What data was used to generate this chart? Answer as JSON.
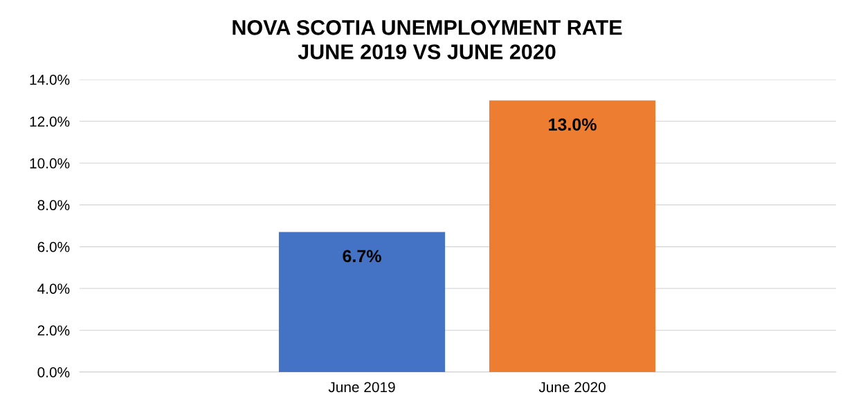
{
  "chart_data": {
    "type": "bar",
    "title": "NOVA SCOTIA UNEMPLOYMENT RATE\nJUNE 2019 VS JUNE 2020",
    "categories": [
      "June 2019",
      "June 2020"
    ],
    "values": [
      6.7,
      13.0
    ],
    "colors": [
      "#4472c4",
      "#ed7d31"
    ],
    "value_labels": [
      "6.7%",
      "13.0%"
    ],
    "ylim": [
      0,
      14
    ],
    "yticks": [
      {
        "value": 0,
        "label": "0.0%"
      },
      {
        "value": 2,
        "label": "2.0%"
      },
      {
        "value": 4,
        "label": "4.0%"
      },
      {
        "value": 6,
        "label": "6.0%"
      },
      {
        "value": 8,
        "label": "8.0%"
      },
      {
        "value": 10,
        "label": "10.0%"
      },
      {
        "value": 12,
        "label": "12.0%"
      },
      {
        "value": 14,
        "label": "14.0%"
      }
    ],
    "grid": "y",
    "legend": false
  }
}
